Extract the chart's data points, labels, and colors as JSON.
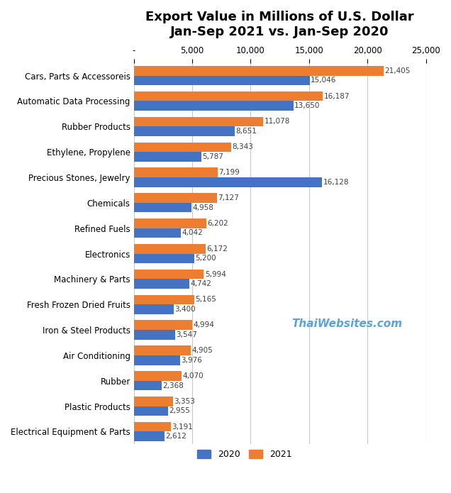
{
  "title_line1": "Export Value in Millions of U.S. Dollar",
  "title_line2": "Jan-Sep 2021 vs. Jan-Sep 2020",
  "categories": [
    "Cars, Parts & Accessoreis",
    "Automatic Data Processing",
    "Rubber Products",
    "Ethylene, Propylene",
    "Precious Stones, Jewelry",
    "Chemicals",
    "Refined Fuels",
    "Electronics",
    "Machinery & Parts",
    "Fresh Frozen Dried Fruits",
    "Iron & Steel Products",
    "Air Conditioning",
    "Rubber",
    "Plastic Products",
    "Electrical Equipment & Parts"
  ],
  "values_2020": [
    15046,
    13650,
    8651,
    5787,
    16128,
    4958,
    4042,
    5200,
    4742,
    3400,
    3547,
    3976,
    2368,
    2955,
    2612
  ],
  "values_2021": [
    21405,
    16187,
    11078,
    8343,
    7199,
    7127,
    6202,
    6172,
    5994,
    5165,
    4994,
    4905,
    4070,
    3353,
    3191
  ],
  "color_2020": "#4472C4",
  "color_2021": "#ED7D31",
  "xlim": [
    0,
    25000
  ],
  "xticks": [
    0,
    5000,
    10000,
    15000,
    20000,
    25000
  ],
  "xtick_labels": [
    "-",
    "5,000",
    "10,000",
    "15,000",
    "20,000",
    "25,000"
  ],
  "watermark": "ThaiWebsites.com",
  "watermark_color": "#5BA3D9",
  "background_color": "#FFFFFF",
  "bar_height": 0.38,
  "title_fontsize": 13,
  "tick_fontsize": 8.5,
  "value_fontsize": 7.5
}
